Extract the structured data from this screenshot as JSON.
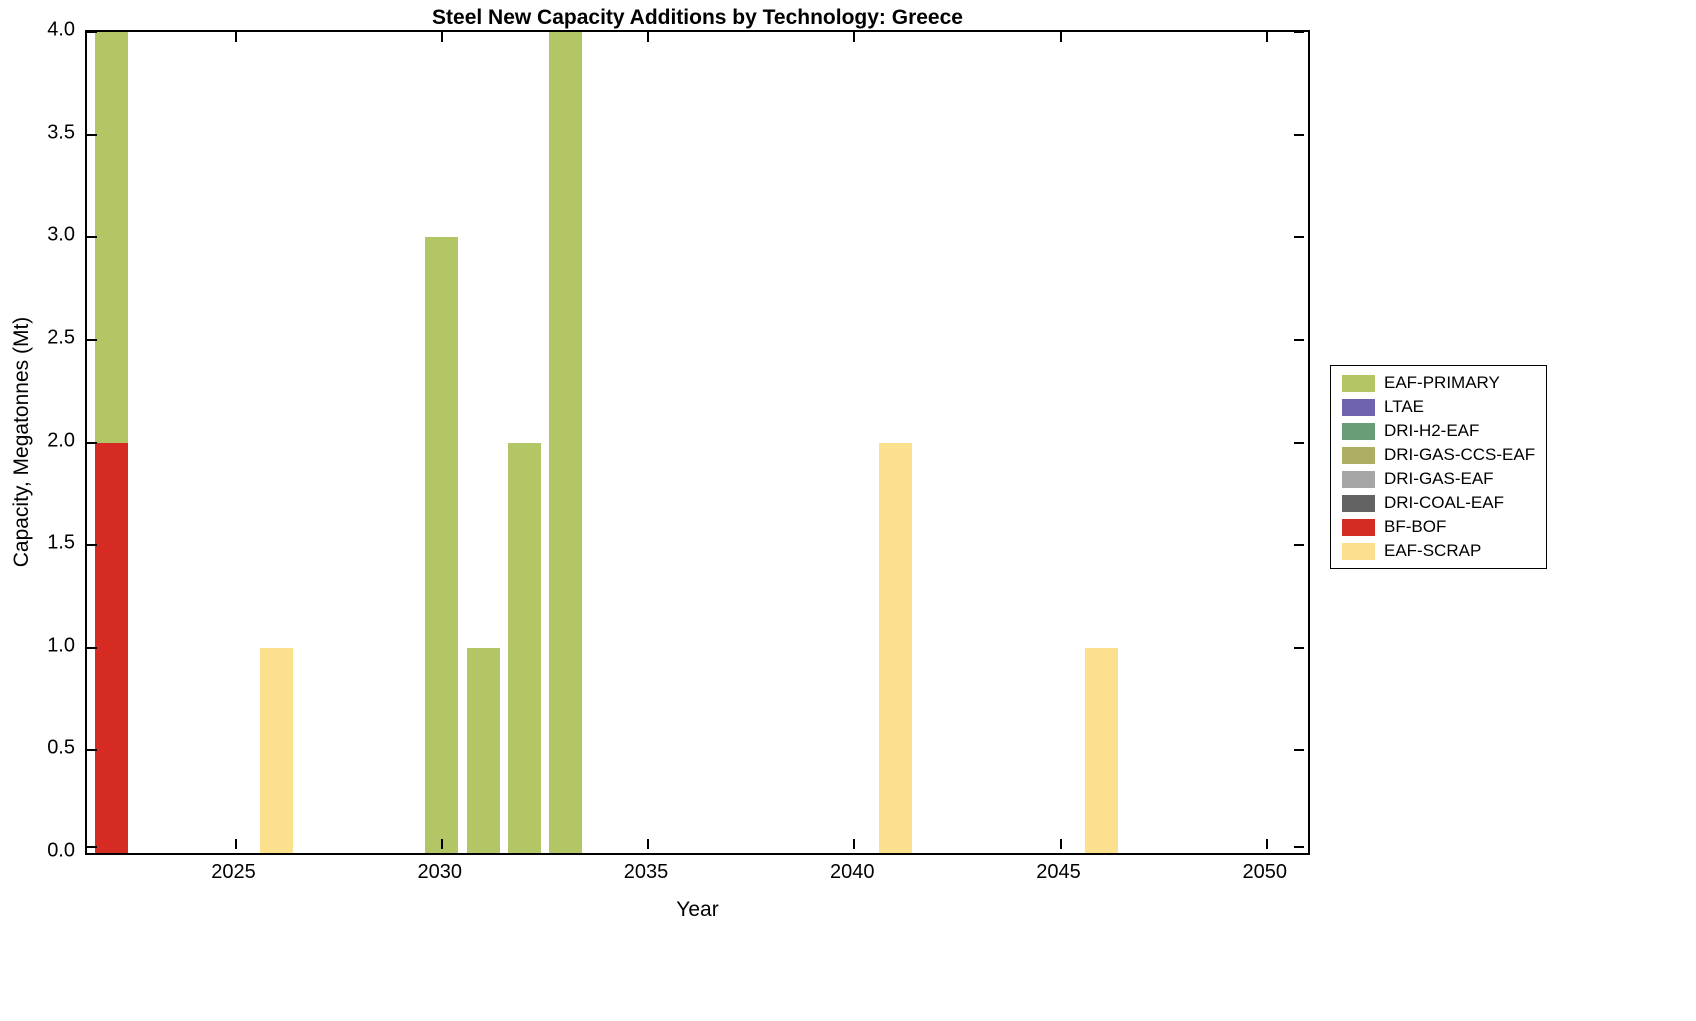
{
  "chart_data": {
    "type": "bar",
    "stacked": true,
    "title": "Steel New Capacity Additions by Technology: Greece",
    "xlabel": "Year",
    "ylabel": "Capacity, Megatonnes (Mt)",
    "xlim": [
      2021.4,
      2051.0
    ],
    "ylim": [
      0,
      4
    ],
    "xticks": [
      2025,
      2030,
      2035,
      2040,
      2045,
      2050
    ],
    "yticks": [
      0.0,
      0.5,
      1.0,
      1.5,
      2.0,
      2.5,
      3.0,
      3.5,
      4.0
    ],
    "grid": false,
    "legend_position": "right-outside",
    "bar_width_years": 0.8,
    "legend": [
      {
        "label": "EAF-PRIMARY",
        "color": "#b3c665"
      },
      {
        "label": "LTAE",
        "color": "#6f63b0"
      },
      {
        "label": "DRI-H2-EAF",
        "color": "#689d77"
      },
      {
        "label": "DRI-GAS-CCS-EAF",
        "color": "#adb064"
      },
      {
        "label": "DRI-GAS-EAF",
        "color": "#a6a6a6"
      },
      {
        "label": "DRI-COAL-EAF",
        "color": "#636363"
      },
      {
        "label": "BF-BOF",
        "color": "#d62b23"
      },
      {
        "label": "EAF-SCRAP",
        "color": "#fbe18e"
      }
    ],
    "bars": [
      {
        "year": 2022,
        "segments": [
          {
            "tech": "BF-BOF",
            "value": 2.0
          },
          {
            "tech": "EAF-PRIMARY",
            "value": 2.0
          }
        ]
      },
      {
        "year": 2026,
        "segments": [
          {
            "tech": "EAF-SCRAP",
            "value": 1.0
          }
        ]
      },
      {
        "year": 2030,
        "segments": [
          {
            "tech": "EAF-PRIMARY",
            "value": 3.0
          }
        ]
      },
      {
        "year": 2031,
        "segments": [
          {
            "tech": "EAF-PRIMARY",
            "value": 1.0
          }
        ]
      },
      {
        "year": 2032,
        "segments": [
          {
            "tech": "EAF-PRIMARY",
            "value": 2.0
          }
        ]
      },
      {
        "year": 2033,
        "segments": [
          {
            "tech": "EAF-PRIMARY",
            "value": 4.0
          }
        ]
      },
      {
        "year": 2041,
        "segments": [
          {
            "tech": "EAF-SCRAP",
            "value": 2.0
          }
        ]
      },
      {
        "year": 2046,
        "segments": [
          {
            "tech": "EAF-SCRAP",
            "value": 1.0
          }
        ]
      }
    ]
  }
}
